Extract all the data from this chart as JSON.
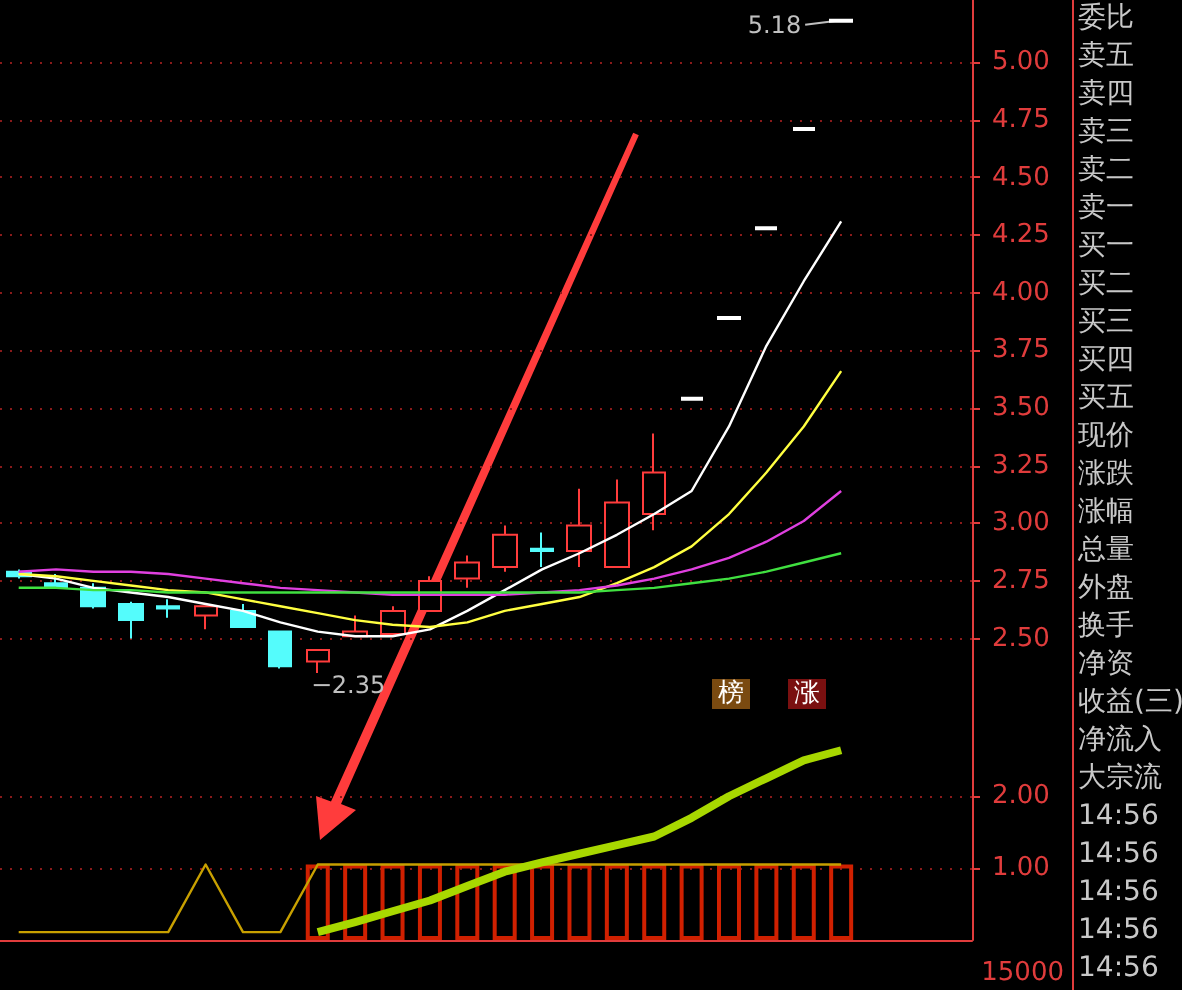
{
  "chart_data": [
    {
      "type": "candlestick",
      "categories": [
        null,
        null,
        null,
        null,
        null,
        null,
        null,
        null,
        null,
        null,
        null,
        null,
        null,
        null,
        null,
        null,
        null,
        null,
        null,
        null,
        null,
        null,
        null,
        null,
        null,
        null
      ],
      "ohlc": [
        [
          2.79,
          2.8,
          2.76,
          2.77
        ],
        [
          2.74,
          2.78,
          2.72,
          2.72
        ],
        [
          2.72,
          2.74,
          2.63,
          2.64
        ],
        [
          2.65,
          2.66,
          2.5,
          2.58
        ],
        [
          2.64,
          2.67,
          2.59,
          2.63
        ],
        [
          2.6,
          2.64,
          2.54,
          2.64
        ],
        [
          2.62,
          2.65,
          2.55,
          2.55
        ],
        [
          2.53,
          2.53,
          2.37,
          2.38
        ],
        [
          2.4,
          2.45,
          2.35,
          2.45
        ],
        [
          2.51,
          2.6,
          2.51,
          2.53
        ],
        [
          2.52,
          2.64,
          2.52,
          2.62
        ],
        [
          2.62,
          2.77,
          2.62,
          2.75
        ],
        [
          2.76,
          2.86,
          2.72,
          2.83
        ],
        [
          2.81,
          2.99,
          2.79,
          2.95
        ],
        [
          2.89,
          2.96,
          2.81,
          2.88
        ],
        [
          2.88,
          3.15,
          2.81,
          2.99
        ],
        [
          2.81,
          3.19,
          2.81,
          3.09
        ],
        [
          3.04,
          3.39,
          2.97,
          3.22
        ],
        [
          3.54,
          3.54,
          3.54,
          3.54
        ],
        [
          3.89,
          3.89,
          3.89,
          3.89
        ],
        [
          4.28,
          4.28,
          4.28,
          4.28
        ],
        [
          4.71,
          4.71,
          4.71,
          4.71
        ],
        [
          5.18,
          5.18,
          5.18,
          5.18
        ],
        null,
        null,
        null
      ],
      "series": [
        {
          "type": "line",
          "color": "#ffffff",
          "values": [
            2.78,
            2.76,
            2.72,
            2.7,
            2.68,
            2.65,
            2.62,
            2.57,
            2.53,
            2.51,
            2.51,
            2.54,
            2.62,
            2.71,
            2.8,
            2.87,
            2.95,
            3.04,
            3.14,
            3.42,
            3.77,
            4.05,
            4.31,
            null,
            null,
            null
          ]
        },
        {
          "type": "line",
          "color": "#ffff40",
          "values": [
            2.78,
            2.77,
            2.75,
            2.73,
            2.71,
            2.7,
            2.67,
            2.64,
            2.61,
            2.58,
            2.56,
            2.55,
            2.57,
            2.62,
            2.65,
            2.68,
            2.74,
            2.81,
            2.9,
            3.04,
            3.22,
            3.42,
            3.66,
            null,
            null,
            null
          ]
        },
        {
          "type": "line",
          "color": "#e040e0",
          "values": [
            2.79,
            2.8,
            2.79,
            2.79,
            2.78,
            2.76,
            2.74,
            2.72,
            2.71,
            2.7,
            2.69,
            2.69,
            2.69,
            2.69,
            2.7,
            2.71,
            2.73,
            2.76,
            2.8,
            2.85,
            2.92,
            3.01,
            3.14,
            null,
            null,
            null
          ]
        },
        {
          "type": "line",
          "color": "#40e040",
          "values": [
            2.72,
            2.72,
            2.71,
            2.71,
            2.7,
            2.7,
            2.7,
            2.7,
            2.7,
            2.7,
            2.7,
            2.7,
            2.7,
            2.7,
            2.7,
            2.7,
            2.71,
            2.72,
            2.74,
            2.76,
            2.79,
            2.83,
            2.87,
            null,
            null,
            null
          ]
        }
      ],
      "ylim": [
        2.19,
        5.27
      ],
      "yticks": [
        {
          "value": 2.5,
          "label": "2.50"
        },
        {
          "value": 2.75,
          "label": "2.75"
        },
        {
          "value": 3,
          "label": "3.00"
        },
        {
          "value": 3.25,
          "label": "3.25"
        },
        {
          "value": 3.5,
          "label": "3.50"
        },
        {
          "value": 3.75,
          "label": "3.75"
        },
        {
          "value": 4,
          "label": "4.00"
        },
        {
          "value": 4.25,
          "label": "4.25"
        },
        {
          "value": 4.5,
          "label": "4.50"
        },
        {
          "value": 4.75,
          "label": "4.75"
        },
        {
          "value": 5,
          "label": "5.00"
        }
      ],
      "grid": "y",
      "tick_labels": "y",
      "marker": "none",
      "annotations": [
        "2.35",
        "5.18",
        "榜",
        "涨"
      ]
    },
    {
      "type": "line",
      "categories": [
        null,
        null,
        null,
        null,
        null,
        null,
        null,
        null,
        null,
        null,
        null,
        null,
        null,
        null,
        null,
        null,
        null,
        null,
        null,
        null,
        null,
        null,
        null,
        null,
        null,
        null
      ],
      "series": [
        {
          "type": "bar",
          "color": "#d02000",
          "values": [
            null,
            null,
            null,
            null,
            null,
            null,
            null,
            null,
            1.05,
            1.05,
            1.05,
            1.05,
            1.05,
            1.05,
            1.05,
            1.05,
            1.05,
            1.05,
            1.05,
            1.05,
            1.05,
            1.05,
            1.05,
            null,
            null,
            null
          ]
        },
        {
          "type": "line",
          "color": "#c8a000",
          "values": [
            0.11,
            0.11,
            0.11,
            0.11,
            0.11,
            1.05,
            0.11,
            0.11,
            1.05,
            1.05,
            1.05,
            1.05,
            1.05,
            1.05,
            1.05,
            1.05,
            1.05,
            1.05,
            1.05,
            1.05,
            1.05,
            1.05,
            1.05,
            null,
            null,
            null
          ]
        },
        {
          "type": "line",
          "color": "#a8d800",
          "values": [
            null,
            null,
            null,
            null,
            null,
            null,
            null,
            null,
            0.11,
            0.25,
            0.4,
            0.55,
            0.75,
            0.95,
            1.08,
            1.2,
            1.32,
            1.44,
            1.7,
            2.0,
            2.25,
            2.5,
            2.64,
            null,
            null,
            null
          ]
        }
      ],
      "ylim": [
        0,
        3.2
      ],
      "yticks": [
        {
          "value": 1,
          "label": "1.00"
        },
        {
          "value": 2,
          "label": "2.00"
        }
      ],
      "grid": "y",
      "tick_labels": "y",
      "marker": "none",
      "annotations": [
        "15000"
      ]
    },
    {
      "type": "other",
      "annotations": [
        "委比",
        "卖五",
        "卖四",
        "卖三",
        "卖二",
        "卖一",
        "买一",
        "买二",
        "买三",
        "买四",
        "买五",
        "现价",
        "涨跌",
        "涨幅",
        "总量",
        "外盘",
        "换手",
        "净资",
        "收益(三)",
        "净流入",
        "大宗流",
        "14:56",
        "14:56",
        "14:56",
        "14:56",
        "14:56"
      ]
    }
  ]
}
